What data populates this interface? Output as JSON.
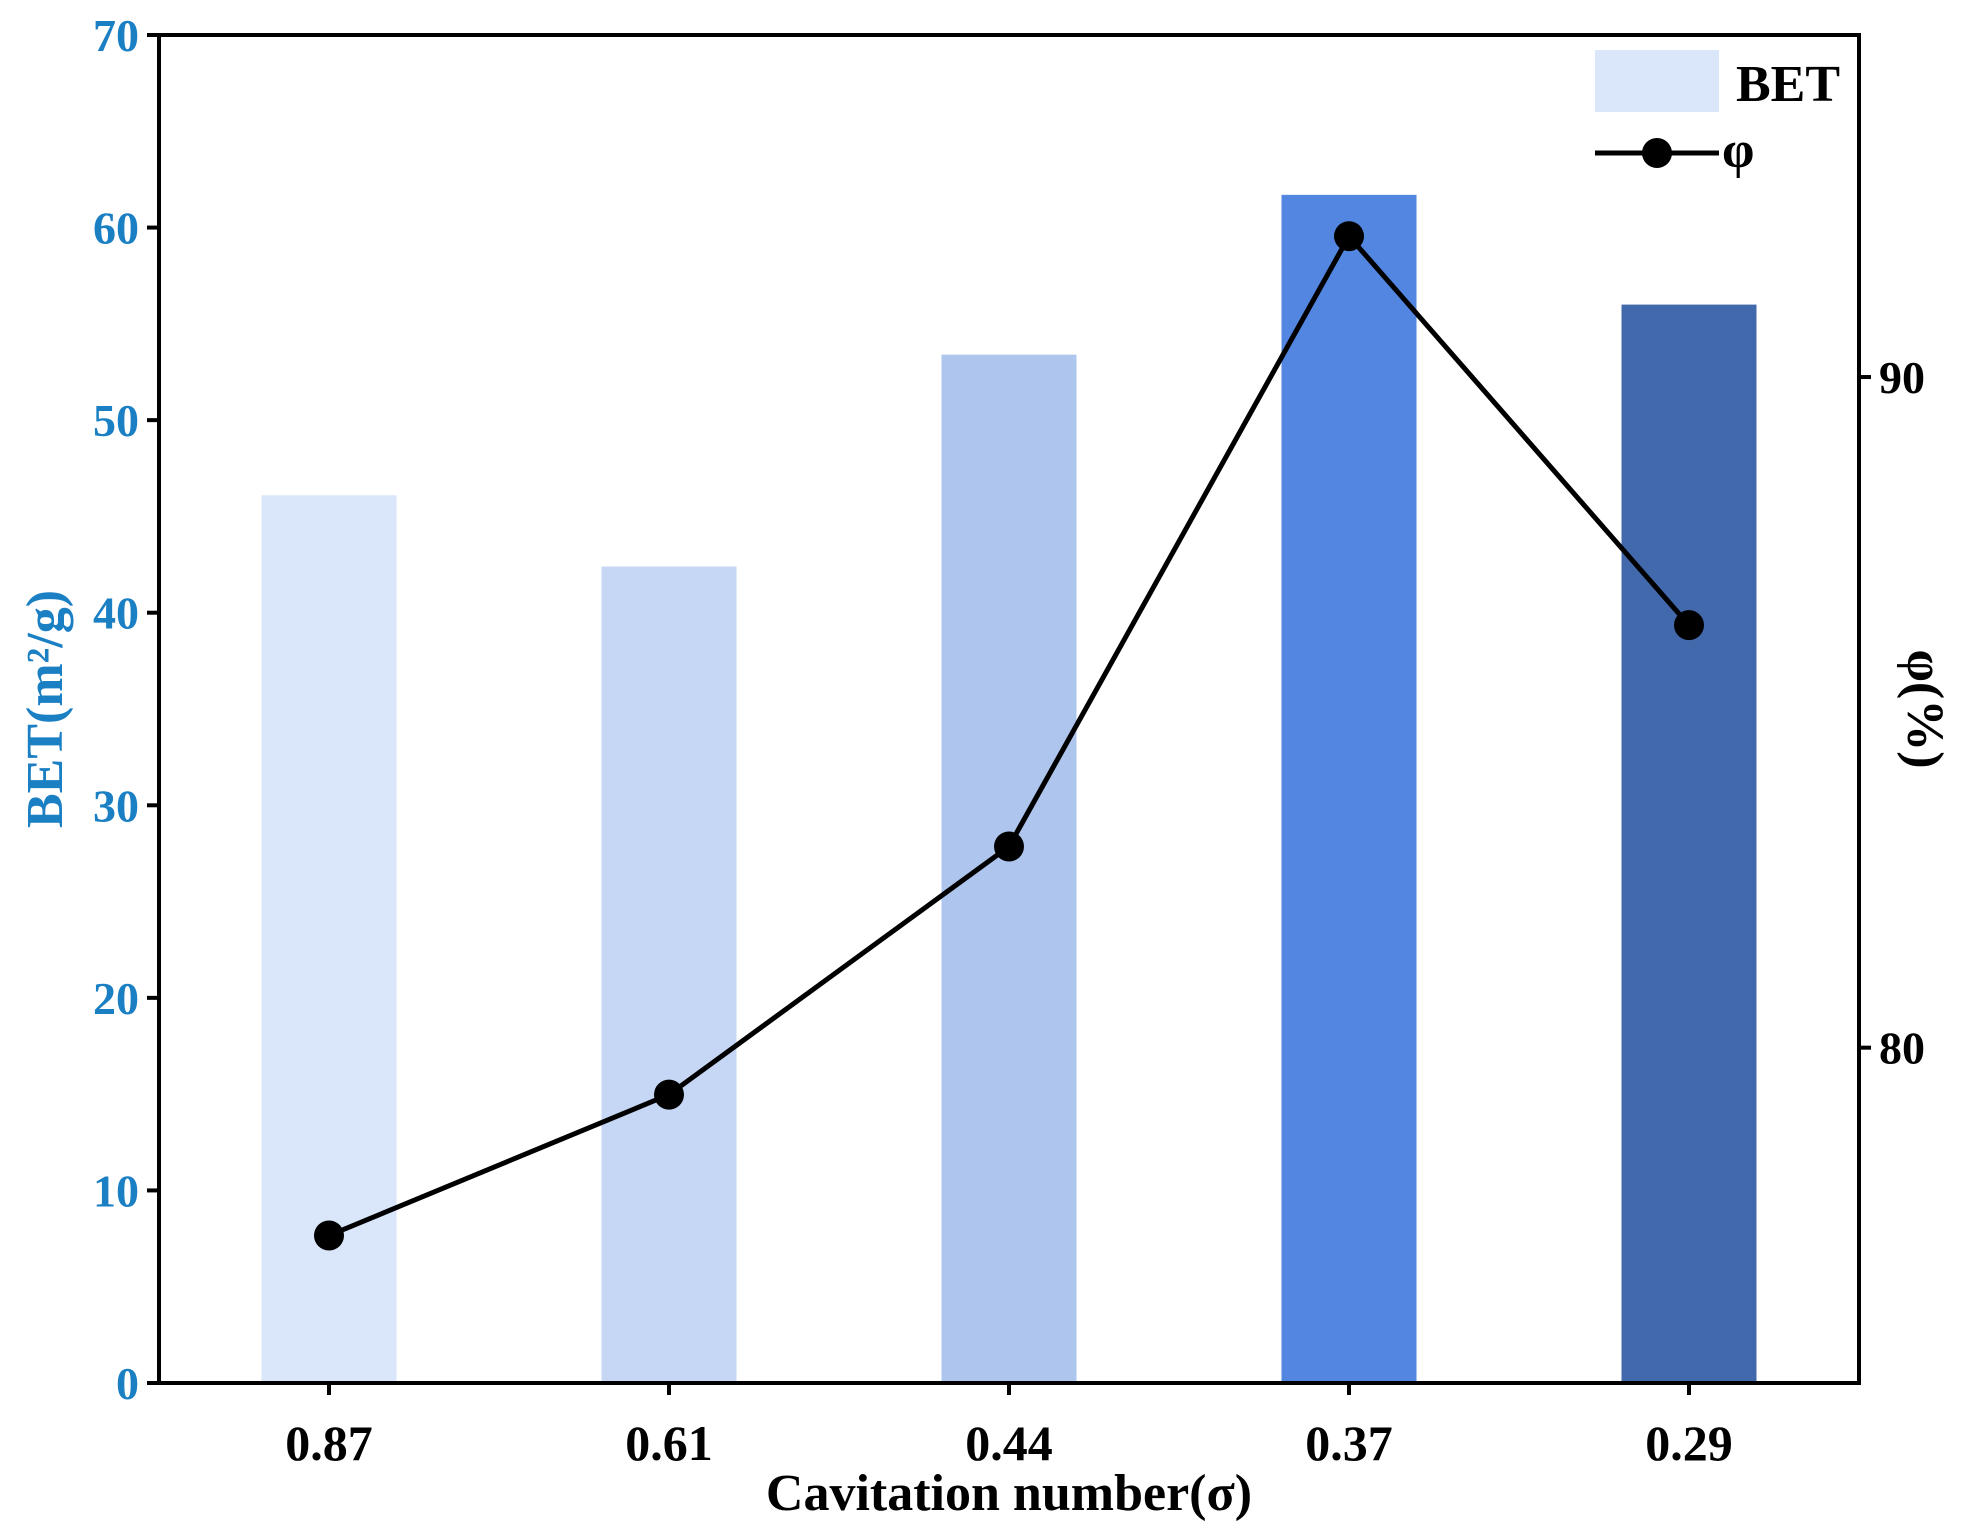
{
  "chart_data": {
    "type": "bar",
    "title": "",
    "xlabel": "Cavitation number(σ)",
    "ylabel": "BET(m²/g)",
    "y2label": "φ(%)",
    "categories": [
      "0.87",
      "0.61",
      "0.44",
      "0.37",
      "0.29"
    ],
    "series": [
      {
        "name": "BET",
        "kind": "bar",
        "axis": "left",
        "values": [
          46.1,
          42.4,
          53.4,
          61.7,
          56.0
        ],
        "colors": [
          "#dae6f9",
          "#c5d7f5",
          "#aec5ee",
          "#5286e0",
          "#4369ad"
        ]
      },
      {
        "name": "φ",
        "kind": "line",
        "axis": "right",
        "values": [
          77.2,
          79.3,
          83.0,
          92.1,
          86.3
        ],
        "color": "#000000"
      }
    ],
    "ylim": [
      0,
      70
    ],
    "yticks": [
      0,
      10,
      20,
      30,
      40,
      50,
      60,
      70
    ],
    "y2lim": [
      75.0,
      95.1
    ],
    "y2ticks": [
      80,
      90
    ],
    "legend": {
      "position": "top-right",
      "entries": [
        "BET",
        "φ"
      ]
    },
    "left_axis_color": "#1b7fc4",
    "grid": false
  }
}
